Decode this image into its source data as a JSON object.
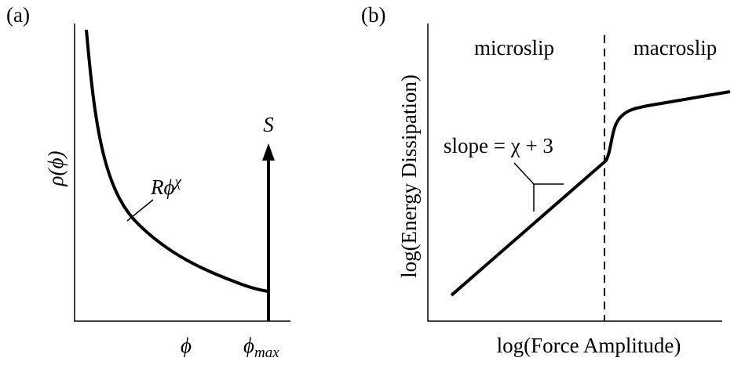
{
  "panels": [
    {
      "label": "(a)",
      "y_label": "ρ(ϕ)",
      "curve_label": {
        "base": "Rϕ",
        "sup": "χ"
      },
      "arrow_label": "S",
      "x_label": "ϕ",
      "x_max_label": {
        "base": "ϕ",
        "sub": "max"
      }
    },
    {
      "label": "(b)",
      "y_label": "log(Energy Dissipation)",
      "x_label": "log(Force Amplitude)",
      "left_region": "microslip",
      "right_region": "macroslip",
      "slope_label": "slope = χ + 3"
    }
  ]
}
